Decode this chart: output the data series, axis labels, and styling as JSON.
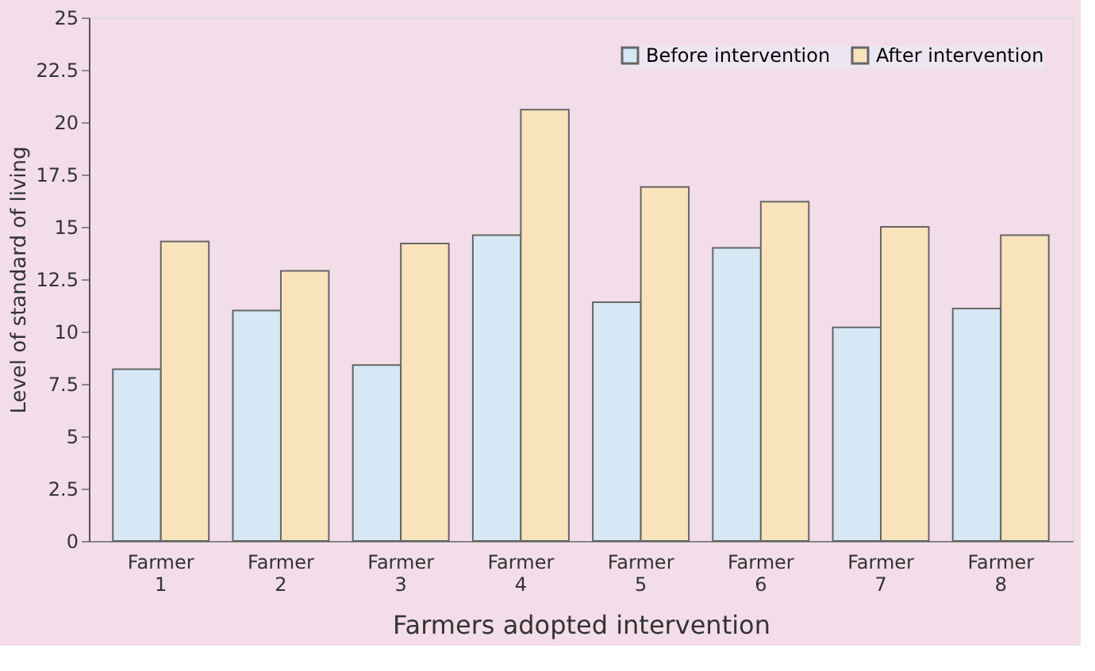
{
  "chart_data": {
    "type": "bar",
    "xlabel": "Farmers adopted intervention",
    "ylabel": "Level of standard of living",
    "categories": [
      "Farmer 1",
      "Farmer 2",
      "Farmer 3",
      "Farmer 4",
      "Farmer 5",
      "Farmer 6",
      "Farmer 7",
      "Farmer 8"
    ],
    "series": [
      {
        "name": "Before intervention",
        "color": "#d6e8f5",
        "values": [
          8.2,
          11.0,
          8.4,
          14.6,
          11.4,
          14.0,
          10.2,
          11.1
        ]
      },
      {
        "name": "After intervention",
        "color": "#f8e3bb",
        "values": [
          14.3,
          12.9,
          14.2,
          20.6,
          16.9,
          16.2,
          15.0,
          14.6
        ]
      }
    ],
    "ylim": [
      0,
      25
    ],
    "yticks": [
      0,
      2.5,
      5,
      7.5,
      10,
      12.5,
      15,
      17.5,
      20,
      22.5,
      25
    ],
    "grid": false,
    "legend": "top right"
  }
}
